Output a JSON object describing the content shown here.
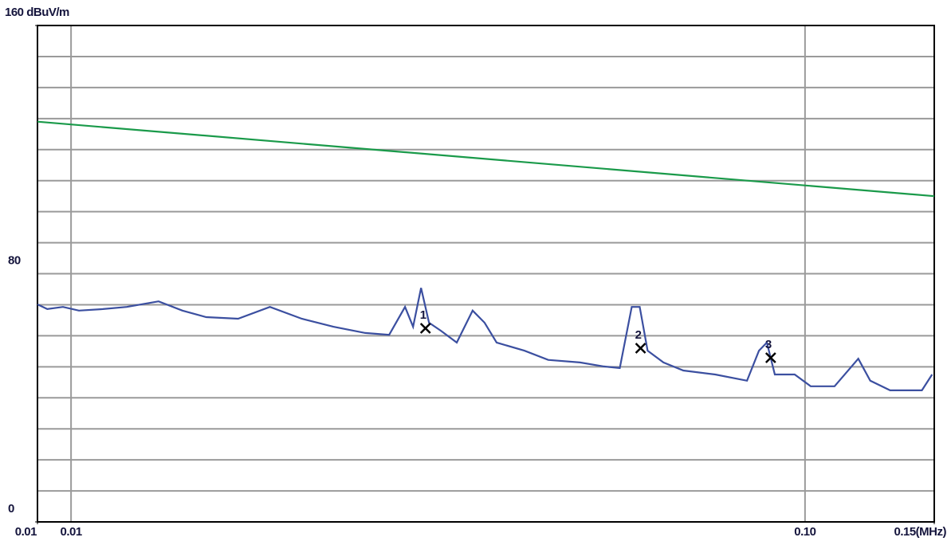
{
  "chart_data": {
    "type": "line",
    "xscale": "log",
    "xlim": [
      0.009,
      0.15
    ],
    "xticks": [
      {
        "value": 0.009,
        "label": "0.01"
      },
      0.01,
      {
        "value": 0.1,
        "label": "0.10"
      },
      {
        "value": 0.15,
        "label": "0.15(MHz)"
      }
    ],
    "ylim": [
      0,
      160
    ],
    "yticks": [
      0,
      80,
      {
        "value": 160,
        "label": "160 dBuV/m"
      }
    ],
    "ygrid": [
      10,
      20,
      30,
      40,
      50,
      60,
      70,
      80,
      90,
      100,
      110,
      120,
      130,
      140,
      150
    ],
    "series": [
      {
        "color": "#1a9a4a",
        "x": [
          0.009,
          0.15
        ],
        "values": [
          129,
          105
        ]
      },
      {
        "color": "#3b4fa0",
        "x": [
          0.009,
          0.00928,
          0.00975,
          0.01025,
          0.01105,
          0.01191,
          0.01316,
          0.01418,
          0.01528,
          0.01689,
          0.01866,
          0.02062,
          0.02278,
          0.02517,
          0.02713,
          0.02851,
          0.02924,
          0.02998,
          0.03074,
          0.03191,
          0.03354,
          0.03525,
          0.0366,
          0.038,
          0.04146,
          0.04468,
          0.04937,
          0.0532,
          0.05593,
          0.05806,
          0.05953,
          0.06103,
          0.06415,
          0.06827,
          0.07544,
          0.08336,
          0.08654,
          0.08872,
          0.09096,
          0.09681,
          0.1018,
          0.1097,
          0.1182,
          0.1227,
          0.1306,
          0.1443,
          0.149
        ],
        "values": [
          70.1,
          68.6,
          69.3,
          68.1,
          68.6,
          69.3,
          71.1,
          68.1,
          66.0,
          65.5,
          69.3,
          65.5,
          62.9,
          60.9,
          60.3,
          69.3,
          62.9,
          75.4,
          64.2,
          61.6,
          57.8,
          68.1,
          64.2,
          57.8,
          55.2,
          52.2,
          51.4,
          50.1,
          49.6,
          69.3,
          69.3,
          55.2,
          51.4,
          48.8,
          47.5,
          45.5,
          55.2,
          57.8,
          47.5,
          47.5,
          43.7,
          43.7,
          52.6,
          45.5,
          42.4,
          42.4,
          47.5
        ]
      }
    ],
    "markers": [
      {
        "label": "1",
        "x": 0.0304,
        "y": 62.4
      },
      {
        "label": "2",
        "x": 0.0597,
        "y": 56.0
      },
      {
        "label": "3",
        "x": 0.0898,
        "y": 52.9
      }
    ]
  }
}
